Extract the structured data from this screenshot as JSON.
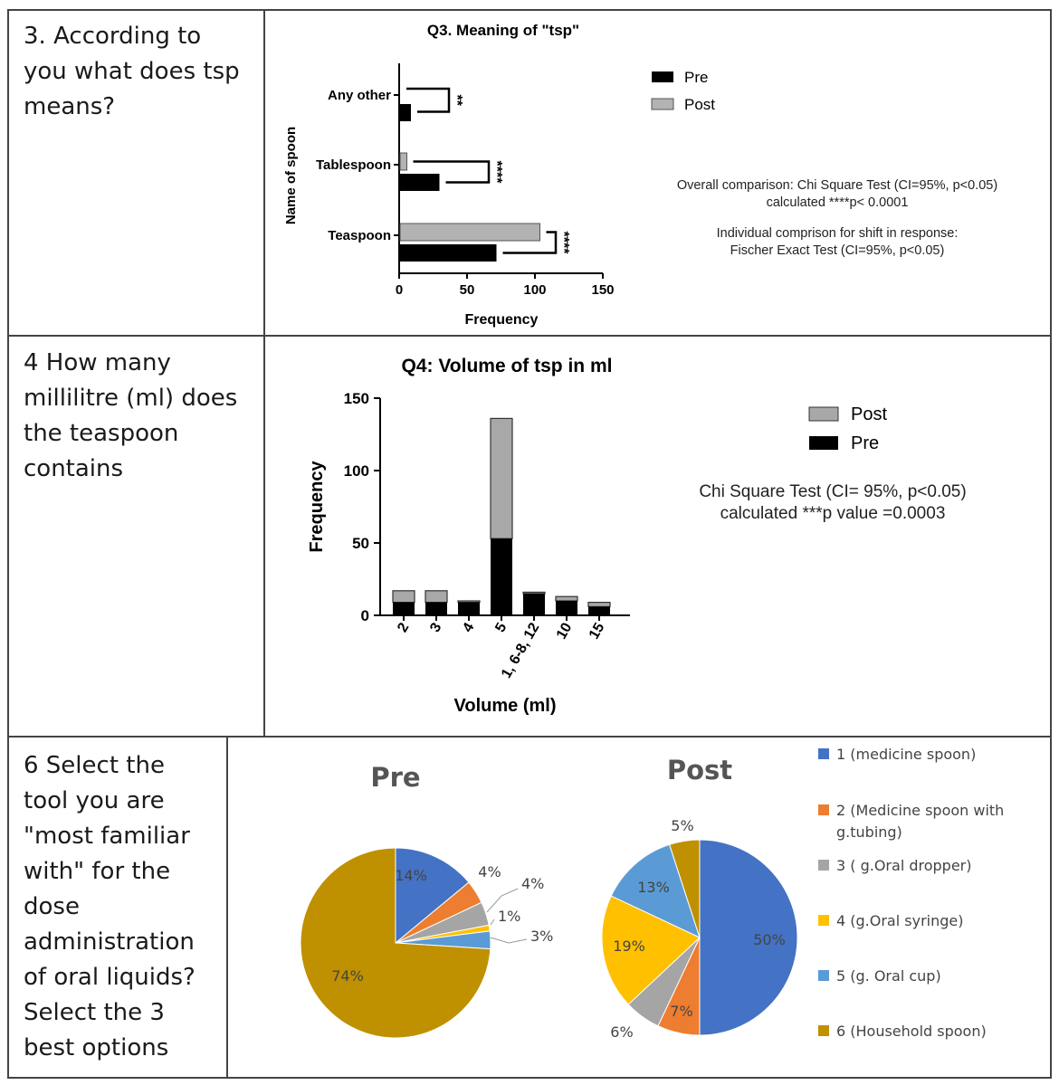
{
  "questions": {
    "q3": [
      "3. According to",
      "you what does tsp",
      "means?"
    ],
    "q4": [
      "4 How many",
      "millilitre (ml) does",
      "the teaspoon",
      "contains"
    ],
    "q6": [
      "6 Select the",
      "tool you are",
      "\"most familiar",
      "with\" for the",
      "dose",
      "administration",
      "of oral liquids?",
      "Select the 3",
      "best options"
    ]
  },
  "q3_annotation": {
    "line1": "Overall comparison: Chi Square Test (CI=95%, p<0.05)",
    "line2": "calculated ****p< 0.0001",
    "line3": "Individual comprison for shift in response:",
    "line4": "Fischer Exact Test (CI=95%, p<0.05)"
  },
  "q4_annotation": {
    "line1": "Chi Square Test (CI= 95%, p<0.05)",
    "line2": "calculated ***p value =0.0003"
  },
  "colors": {
    "pre": "#000000",
    "post": "#a9a9a9",
    "pie": [
      "#4472c4",
      "#ed7d31",
      "#a5a5a5",
      "#ffc000",
      "#5b9bd5",
      "#bf9000"
    ]
  },
  "chart_data": [
    {
      "type": "bar",
      "orientation": "horizontal",
      "title": "Q3. Meaning of \"tsp\"",
      "xlabel": "Frequency",
      "ylabel": "Name of spoon",
      "categories": [
        "Any other",
        "Tablespoon",
        "Teaspoon"
      ],
      "series": [
        {
          "name": "Pre",
          "values": [
            8,
            29,
            71
          ]
        },
        {
          "name": "Post",
          "values": [
            0,
            5,
            103
          ]
        }
      ],
      "xlim": [
        0,
        150
      ],
      "xticks": [
        0,
        50,
        100,
        150
      ],
      "significance": [
        "**",
        "****",
        "****"
      ],
      "legend": [
        "Pre",
        "Post"
      ]
    },
    {
      "type": "bar",
      "orientation": "vertical-stacked",
      "title": "Q4: Volume of tsp in ml",
      "xlabel": "Volume (ml)",
      "ylabel": "Frequency",
      "categories": [
        "2",
        "3",
        "4",
        "5",
        "1, 6-8, 12",
        "10",
        "15"
      ],
      "series": [
        {
          "name": "Pre",
          "values": [
            9,
            9,
            9,
            53,
            15,
            10,
            6
          ]
        },
        {
          "name": "Post",
          "values": [
            8,
            8,
            1,
            83,
            1,
            3,
            3
          ]
        }
      ],
      "ylim": [
        0,
        150
      ],
      "yticks": [
        0,
        50,
        100,
        150
      ],
      "legend": [
        "Post",
        "Pre"
      ]
    },
    {
      "type": "pie",
      "title": "Pre",
      "labels": [
        "1 (medicine spoon)",
        "2 (Medicine spoon with g.tubing)",
        "3 ( g.Oral dropper)",
        "4  (g.Oral syringe)",
        "5  (g. Oral cup)",
        "6 (Household spoon)"
      ],
      "values": [
        14,
        4,
        4,
        1,
        3,
        74
      ],
      "value_labels": [
        "14%",
        "4%",
        "4%",
        "1%",
        "3%",
        "74%"
      ]
    },
    {
      "type": "pie",
      "title": "Post",
      "labels": [
        "1 (medicine spoon)",
        "2 (Medicine spoon with g.tubing)",
        "3 ( g.Oral dropper)",
        "4  (g.Oral syringe)",
        "5  (g. Oral cup)",
        "6 (Household spoon)"
      ],
      "values": [
        50,
        7,
        6,
        19,
        13,
        5
      ],
      "value_labels": [
        "50%",
        "7%",
        "6%",
        "19%",
        "13%",
        "5%"
      ]
    }
  ],
  "pie_legend": [
    "1 (medicine spoon)",
    "2 (Medicine spoon with g.tubing)",
    "3 ( g.Oral dropper)",
    "4  (g.Oral syringe)",
    "5  (g. Oral cup)",
    "6 (Household spoon)"
  ]
}
